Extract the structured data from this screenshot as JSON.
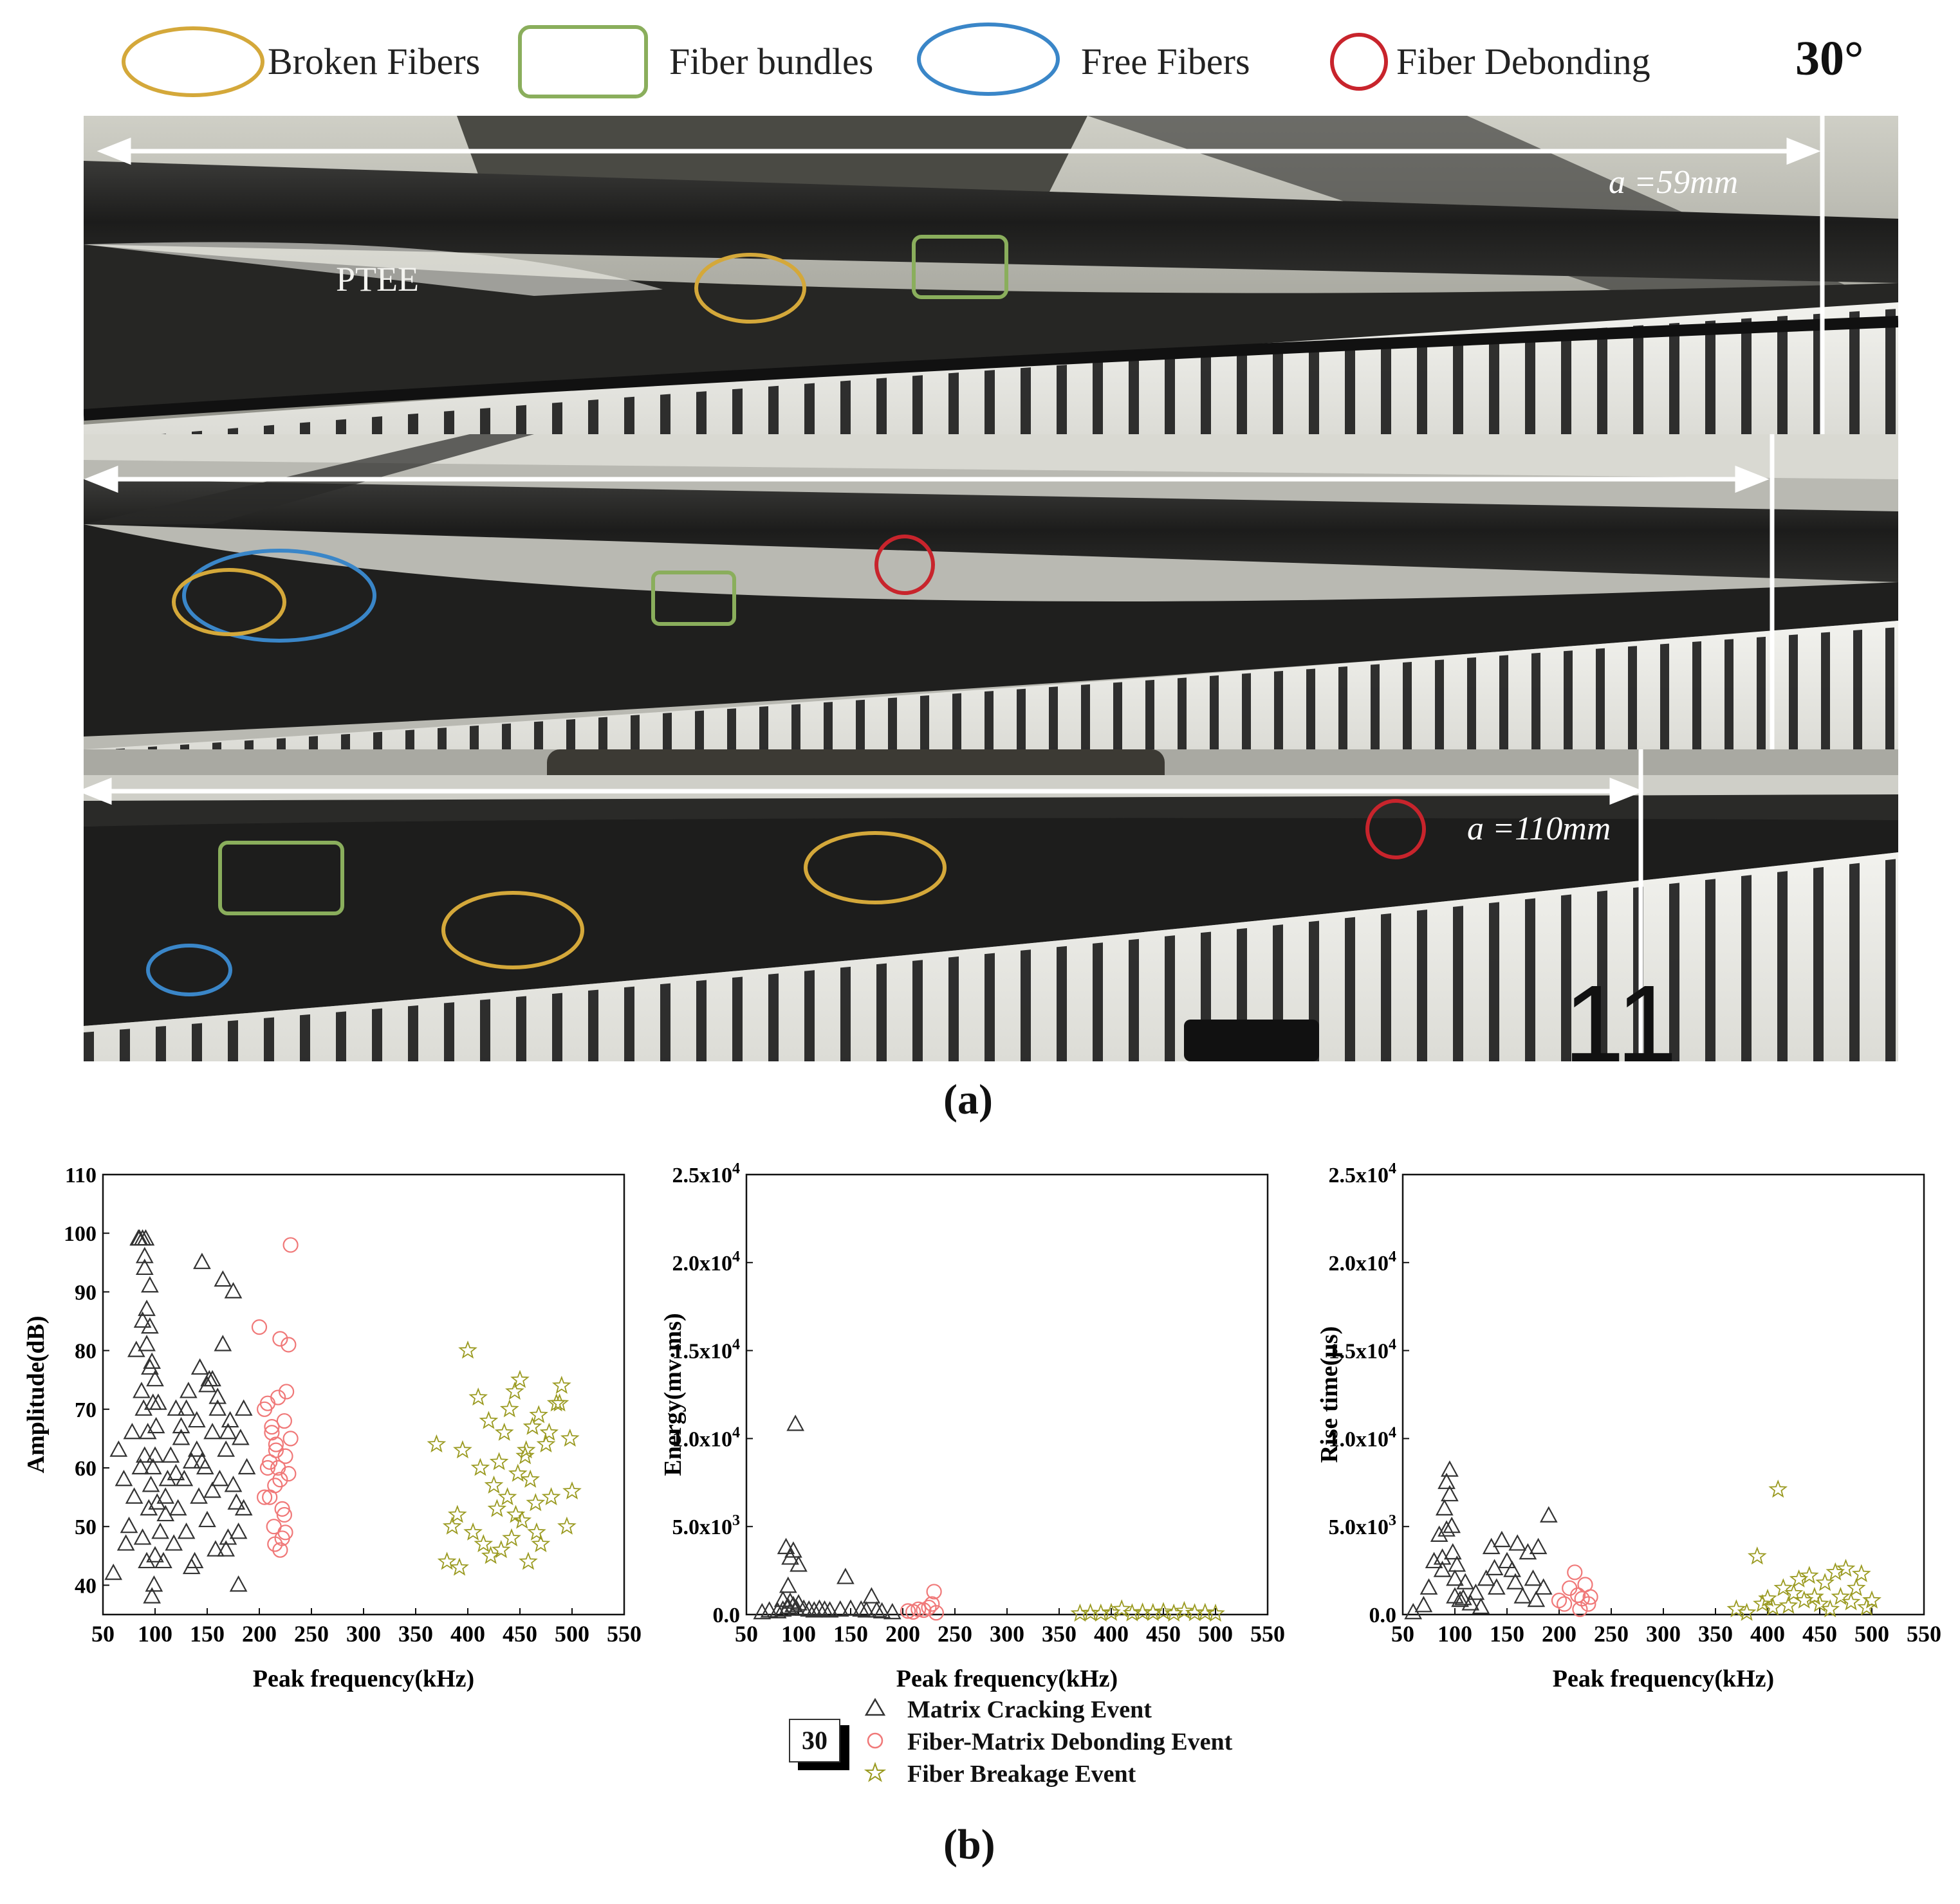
{
  "legend_top": {
    "broken_fibers": "Broken Fibers",
    "fiber_bundles": "Fiber bundles",
    "free_fibers": "Free Fibers",
    "fiber_debonding": "Fiber Debonding",
    "angle": "30°",
    "colors": {
      "broken": "#d4a83a",
      "bundle": "#8aae5c",
      "free": "#3a86c8",
      "debond": "#c8242c"
    }
  },
  "photo": {
    "label_a1": "a =59mm",
    "label_a2": "a =110mm",
    "ptee": "PTEE",
    "scale_digits": "11"
  },
  "caption_a": "(a)",
  "caption_b": "(b)",
  "chart_data": [
    {
      "type": "scatter",
      "xlabel": "Peak frequency(kHz)",
      "ylabel": "Amplitude(dB)",
      "xlim": [
        50,
        550
      ],
      "ylim": [
        35,
        110
      ],
      "xticks": [
        "50",
        "100",
        "150",
        "200",
        "250",
        "300",
        "350",
        "400",
        "450",
        "500",
        "550"
      ],
      "yticks": [
        "40",
        "50",
        "60",
        "70",
        "80",
        "90",
        "100",
        "110"
      ],
      "series": [
        {
          "name": "Matrix Cracking Event",
          "color": "#333333",
          "marker": "triangle",
          "x": [
            60,
            65,
            70,
            72,
            75,
            78,
            80,
            82,
            84,
            85,
            86,
            87,
            88,
            88,
            89,
            90,
            90,
            91,
            92,
            92,
            93,
            94,
            95,
            95,
            96,
            97,
            98,
            98,
            99,
            100,
            100,
            101,
            102,
            103,
            105,
            108,
            110,
            112,
            115,
            118,
            120,
            122,
            125,
            128,
            130,
            132,
            135,
            138,
            140,
            142,
            145,
            148,
            150,
            152,
            155,
            158,
            160,
            162,
            165,
            168,
            170,
            172,
            175,
            178,
            180,
            182,
            185,
            188,
            88,
            90,
            92,
            95,
            97,
            100,
            143,
            165,
            170,
            168,
            150,
            155,
            160,
            140,
            130,
            120,
            110,
            125,
            135,
            145,
            155,
            175,
            180,
            185
          ],
          "y": [
            42,
            63,
            58,
            47,
            50,
            66,
            55,
            80,
            99,
            99,
            60,
            73,
            48,
            85,
            70,
            62,
            94,
            99,
            44,
            81,
            66,
            53,
            91,
            77,
            57,
            38,
            71,
            60,
            40,
            62,
            45,
            67,
            54,
            71,
            49,
            44,
            55,
            58,
            62,
            47,
            70,
            53,
            65,
            58,
            49,
            73,
            61,
            44,
            68,
            55,
            95,
            60,
            51,
            75,
            66,
            46,
            70,
            58,
            92,
            63,
            48,
            68,
            90,
            54,
            40,
            65,
            70,
            60,
            99,
            96,
            87,
            84,
            78,
            75,
            77,
            81,
            66,
            46,
            74,
            56,
            72,
            63,
            70,
            59,
            52,
            67,
            43,
            61,
            75,
            57,
            49,
            53
          ]
        },
        {
          "name": "Fiber-Matrix Debonding Event",
          "color": "#f07878",
          "marker": "circle",
          "x": [
            200,
            205,
            208,
            210,
            212,
            214,
            215,
            216,
            218,
            220,
            220,
            222,
            224,
            225,
            226,
            228,
            230,
            210,
            215,
            220,
            225,
            230,
            205,
            212,
            218,
            224,
            228,
            216,
            222,
            208
          ],
          "y": [
            84,
            70,
            60,
            55,
            66,
            50,
            47,
            64,
            72,
            46,
            58,
            53,
            68,
            62,
            73,
            81,
            98,
            61,
            57,
            82,
            49,
            65,
            55,
            67,
            60,
            52,
            59,
            63,
            48,
            71
          ]
        },
        {
          "name": "Fiber Breakage Event",
          "color": "#9a9a20",
          "marker": "star",
          "x": [
            370,
            380,
            385,
            390,
            395,
            400,
            405,
            410,
            415,
            420,
            425,
            428,
            430,
            432,
            435,
            438,
            440,
            442,
            445,
            448,
            450,
            452,
            455,
            458,
            460,
            462,
            465,
            468,
            470,
            475,
            480,
            485,
            490,
            495,
            500,
            392,
            412,
            422,
            446,
            456,
            466,
            478,
            488,
            498
          ],
          "y": [
            64,
            44,
            50,
            52,
            63,
            80,
            49,
            72,
            47,
            68,
            57,
            53,
            61,
            46,
            66,
            55,
            70,
            48,
            73,
            59,
            75,
            51,
            62,
            44,
            58,
            67,
            54,
            69,
            47,
            64,
            55,
            71,
            74,
            50,
            56,
            43,
            60,
            45,
            52,
            63,
            49,
            66,
            71,
            65
          ]
        }
      ],
      "legend": "bottom-center",
      "grid": false
    },
    {
      "type": "scatter",
      "xlabel": "Peak frequency(kHz)",
      "ylabel": "Energy(mv·ms)",
      "xlim": [
        50,
        550
      ],
      "ylim": [
        0,
        25000
      ],
      "xticks": [
        "50",
        "100",
        "150",
        "200",
        "250",
        "300",
        "350",
        "400",
        "450",
        "500",
        "550"
      ],
      "yticks": [
        "0.0",
        "5.0x10³",
        "1.0x10⁴",
        "1.5x10⁴",
        "2.0x10⁴",
        "2.5x10⁴"
      ],
      "series": [
        {
          "name": "Matrix Cracking Event",
          "color": "#333333",
          "marker": "triangle",
          "x": [
            65,
            72,
            80,
            85,
            88,
            90,
            92,
            95,
            97,
            100,
            100,
            105,
            110,
            115,
            120,
            125,
            130,
            140,
            145,
            150,
            160,
            165,
            170,
            175,
            180,
            190,
            85,
            90,
            95,
            98,
            92
          ],
          "y": [
            100,
            200,
            150,
            250,
            3800,
            1600,
            3200,
            3600,
            10800,
            2800,
            600,
            300,
            250,
            200,
            300,
            250,
            200,
            250,
            2100,
            300,
            250,
            200,
            1000,
            200,
            150,
            100,
            800,
            400,
            500,
            300,
            700
          ]
        },
        {
          "name": "Fiber-Matrix Debonding Event",
          "color": "#f07878",
          "marker": "circle",
          "x": [
            205,
            210,
            215,
            220,
            225,
            228,
            230,
            232
          ],
          "y": [
            200,
            150,
            300,
            250,
            400,
            600,
            1300,
            100
          ]
        },
        {
          "name": "Fiber Breakage Event",
          "color": "#9a9a20",
          "marker": "star",
          "x": [
            370,
            380,
            390,
            400,
            410,
            420,
            430,
            440,
            450,
            460,
            470,
            480,
            490,
            500
          ],
          "y": [
            50,
            80,
            60,
            100,
            300,
            70,
            120,
            90,
            150,
            60,
            200,
            80,
            100,
            50
          ]
        }
      ],
      "legend": "bottom-center",
      "grid": false
    },
    {
      "type": "scatter",
      "xlabel": "Peak frequency(kHz)",
      "ylabel": "Rise time(μs)",
      "xlim": [
        50,
        550
      ],
      "ylim": [
        0,
        25000
      ],
      "xticks": [
        "50",
        "100",
        "150",
        "200",
        "250",
        "300",
        "350",
        "400",
        "450",
        "500",
        "550"
      ],
      "yticks": [
        "0.0",
        "5.0x10³",
        "1.0x10⁴",
        "1.5x10⁴",
        "2.0x10⁴",
        "2.5x10⁴"
      ],
      "series": [
        {
          "name": "Matrix Cracking Event",
          "color": "#333333",
          "marker": "triangle",
          "x": [
            60,
            70,
            75,
            80,
            85,
            88,
            90,
            92,
            95,
            97,
            98,
            100,
            100,
            105,
            110,
            115,
            120,
            125,
            130,
            135,
            140,
            145,
            150,
            155,
            160,
            165,
            170,
            175,
            180,
            185,
            190,
            95,
            92,
            88,
            102,
            108,
            138,
            158,
            178
          ],
          "y": [
            100,
            500,
            1500,
            3000,
            4500,
            2500,
            6000,
            7500,
            8200,
            5000,
            3500,
            2000,
            1000,
            800,
            1800,
            600,
            1200,
            400,
            2000,
            3800,
            1500,
            4200,
            3000,
            2500,
            4000,
            1000,
            3500,
            2000,
            3800,
            1500,
            5600,
            6800,
            4800,
            3200,
            2800,
            900,
            2600,
            1800,
            800
          ]
        },
        {
          "name": "Fiber-Matrix Debonding Event",
          "color": "#f07878",
          "marker": "circle",
          "x": [
            200,
            205,
            210,
            215,
            218,
            220,
            222,
            225,
            228,
            230
          ],
          "y": [
            800,
            600,
            1500,
            2400,
            1100,
            300,
            900,
            1700,
            600,
            1000
          ]
        },
        {
          "name": "Fiber Breakage Event",
          "color": "#9a9a20",
          "marker": "star",
          "x": [
            370,
            380,
            390,
            395,
            400,
            405,
            410,
            415,
            420,
            425,
            430,
            435,
            440,
            445,
            450,
            455,
            460,
            465,
            470,
            475,
            480,
            485,
            490,
            495,
            500
          ],
          "y": [
            300,
            100,
            3300,
            600,
            900,
            400,
            7100,
            1500,
            500,
            1200,
            2000,
            800,
            2200,
            1000,
            600,
            1800,
            300,
            2400,
            1000,
            2600,
            700,
            1500,
            2300,
            400,
            800
          ]
        }
      ],
      "legend": "bottom-center",
      "grid": false
    }
  ],
  "bottom_legend": {
    "box_label": "30",
    "items": [
      "Matrix Cracking Event",
      "Fiber-Matrix Debonding Event",
      "Fiber Breakage Event"
    ]
  }
}
